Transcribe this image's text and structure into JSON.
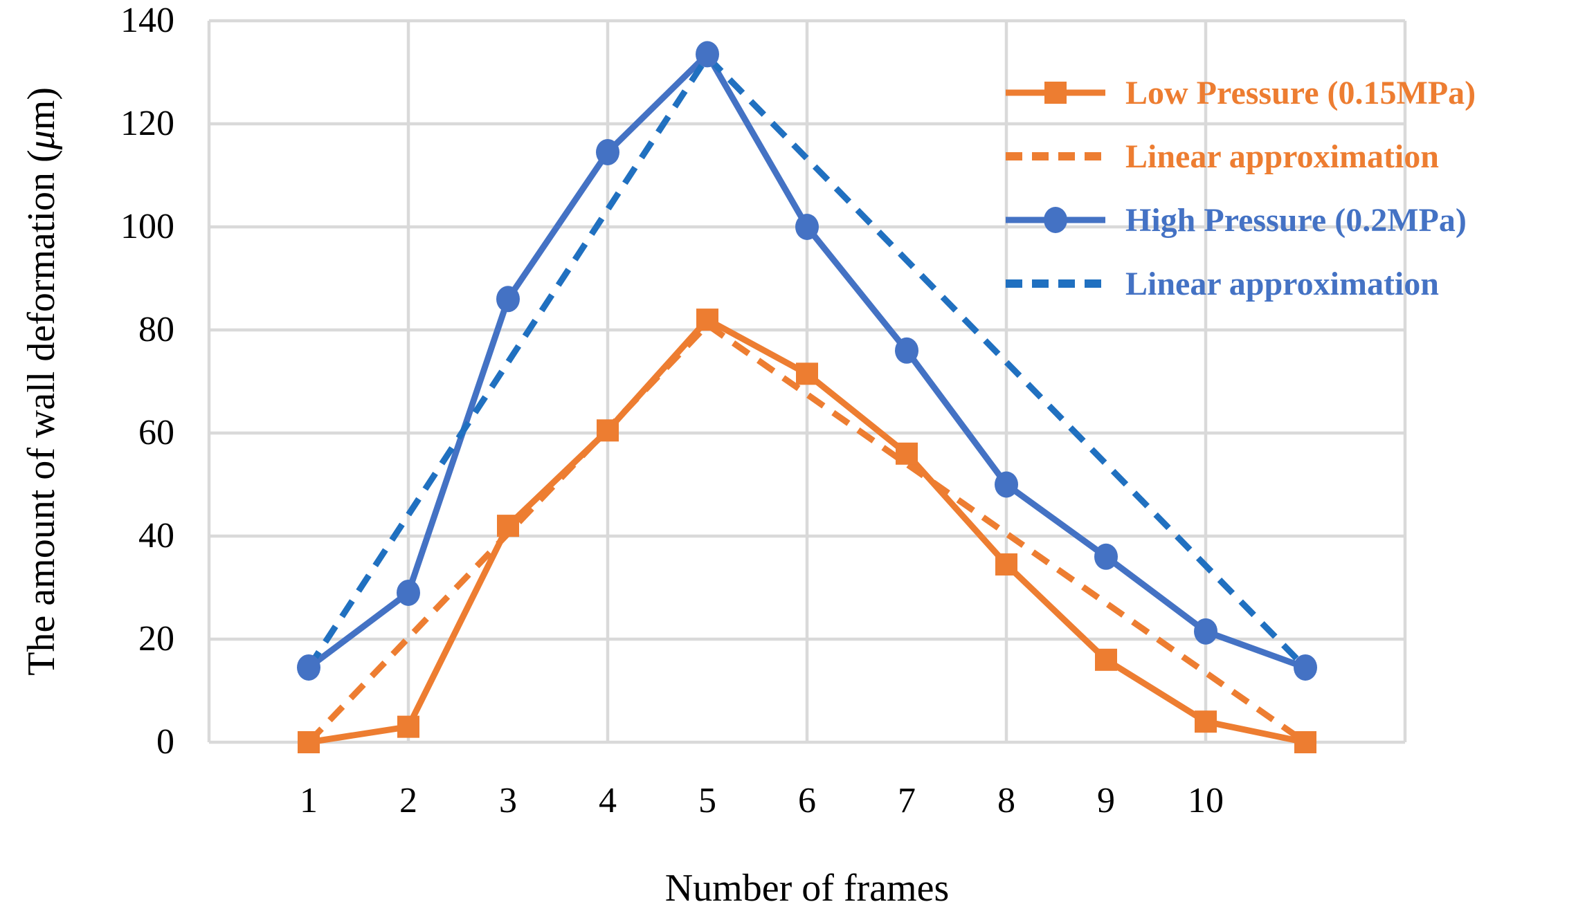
{
  "chart_data": {
    "type": "line",
    "title": "",
    "xlabel": "Number of frames",
    "ylabel": "The amount of wall deformation (μm)",
    "xlim": [
      0,
      12
    ],
    "ylim": [
      0,
      140
    ],
    "y_ticks": [
      0,
      20,
      40,
      60,
      80,
      100,
      120,
      140
    ],
    "x_tick_positions": [
      1,
      2,
      3,
      4,
      5,
      6,
      7,
      8,
      9,
      10
    ],
    "x_tick_labels": [
      "1",
      "2",
      "3",
      "4",
      "5",
      "6",
      "7",
      "8",
      "9",
      "10"
    ],
    "grid": {
      "color": "#D9D9D9",
      "horizontal_at": [
        0,
        20,
        40,
        60,
        80,
        100,
        120,
        140
      ],
      "vertical_at": [
        0,
        2,
        4,
        6,
        8,
        10,
        12
      ]
    },
    "legend_position": "upper right",
    "series": [
      {
        "key": "low-pressure",
        "name": "Low Pressure (0.15MPa)",
        "style": "solid",
        "marker": "square",
        "color": "#ED7D31",
        "x": [
          1,
          2,
          3,
          4,
          5,
          6,
          7,
          8,
          9,
          10,
          11
        ],
        "y": [
          0,
          3,
          42,
          60.5,
          82,
          71.5,
          56,
          34.5,
          16,
          4,
          0
        ]
      },
      {
        "key": "low-pressure-linear-approximation",
        "name": "Linear approximation",
        "style": "dashed",
        "marker": "none",
        "color": "#ED7D31",
        "x": [
          1,
          5,
          11
        ],
        "y": [
          0,
          81,
          0
        ]
      },
      {
        "key": "high-pressure",
        "name": "High Pressure (0.2MPa)",
        "style": "solid",
        "marker": "circle",
        "color": "#4472C4",
        "x": [
          1,
          2,
          3,
          4,
          5,
          6,
          7,
          8,
          9,
          10,
          11
        ],
        "y": [
          14.5,
          29,
          86,
          114.5,
          133.5,
          100,
          76,
          50,
          36,
          21.5,
          14.5
        ]
      },
      {
        "key": "high-pressure-linear-approximation",
        "name": "Linear approximation",
        "style": "dashed",
        "marker": "none",
        "color": "#2070C0",
        "x": [
          1,
          5,
          11
        ],
        "y": [
          14.5,
          133,
          14.5
        ]
      }
    ],
    "legend_label_colors": [
      "#ED7D31",
      "#ED7D31",
      "#4472C4",
      "#4472C4"
    ]
  }
}
